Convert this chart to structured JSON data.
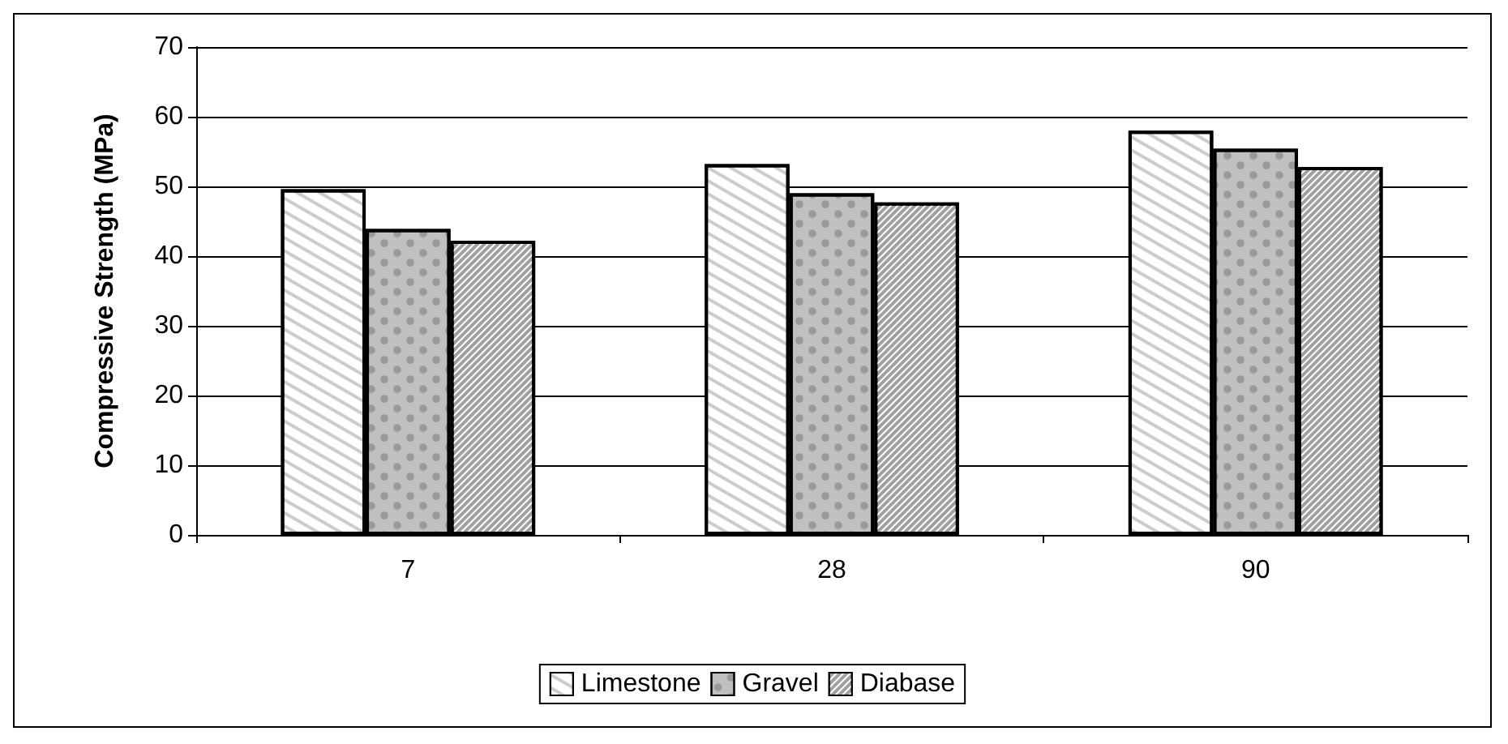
{
  "chart_data": {
    "type": "bar",
    "ylabel": "Compressive Strength (MPa)",
    "categories": [
      "7",
      "28",
      "90"
    ],
    "series": [
      {
        "name": "Limestone",
        "color": "#ffffff",
        "values": [
          49.6,
          53.2,
          58.0
        ]
      },
      {
        "name": "Gravel",
        "color": "#c0c0c0",
        "values": [
          43.9,
          49.0,
          55.4
        ]
      },
      {
        "name": "Diabase",
        "color": "#a0a0a0",
        "values": [
          42.2,
          47.7,
          52.8
        ]
      }
    ],
    "ylim": [
      0,
      70
    ],
    "yticks": [
      0,
      10,
      20,
      30,
      40,
      50,
      60,
      70
    ],
    "grid": "y",
    "legend": "bottom"
  }
}
